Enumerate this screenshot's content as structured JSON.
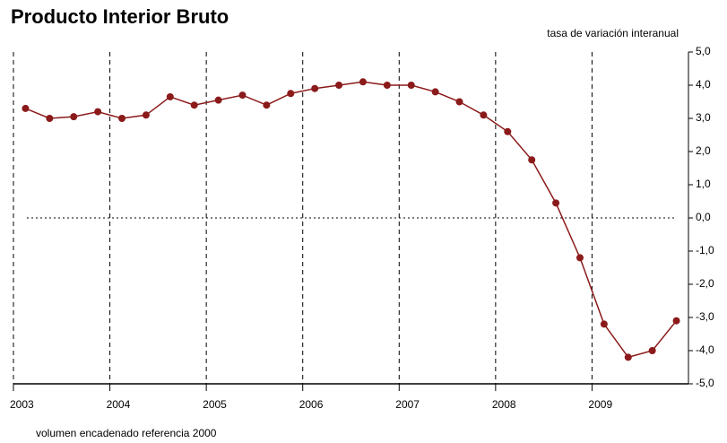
{
  "chart_data": {
    "type": "line",
    "title": "Producto Interior Bruto",
    "subtitle": "tasa de variación interanual",
    "note": "volumen encadenado referencia 2000",
    "x": [
      2003.125,
      2003.375,
      2003.625,
      2003.875,
      2004.125,
      2004.375,
      2004.625,
      2004.875,
      2005.125,
      2005.375,
      2005.625,
      2005.875,
      2006.125,
      2006.375,
      2006.625,
      2006.875,
      2007.125,
      2007.375,
      2007.625,
      2007.875,
      2008.125,
      2008.375,
      2008.625,
      2008.875,
      2009.125,
      2009.375,
      2009.625,
      2009.875
    ],
    "series": [
      {
        "color": "#8b1a1a",
        "values": [
          3.3,
          3.0,
          3.05,
          3.2,
          3.0,
          3.1,
          3.65,
          3.4,
          3.55,
          3.7,
          3.4,
          3.75,
          3.9,
          4.0,
          4.1,
          4.0,
          4.0,
          3.8,
          3.5,
          3.1,
          2.6,
          1.75,
          0.45,
          -1.2,
          -3.2,
          -4.2,
          -4.0,
          -3.1
        ]
      }
    ],
    "xlim": [
      2003,
      2010
    ],
    "xticks": [
      2003,
      2004,
      2005,
      2006,
      2007,
      2008,
      2009
    ],
    "ylim": [
      -5,
      5
    ],
    "yticks": [
      {
        "value": 5,
        "label": "5,0"
      },
      {
        "value": 4,
        "label": "4,0"
      },
      {
        "value": 3,
        "label": "3,0"
      },
      {
        "value": 2,
        "label": "2,0"
      },
      {
        "value": 1,
        "label": "1,0"
      },
      {
        "value": 0,
        "label": "0,0"
      },
      {
        "value": -1,
        "label": "-1,0"
      },
      {
        "value": -2,
        "label": "-2,0"
      },
      {
        "value": -3,
        "label": "-3,0"
      },
      {
        "value": -4,
        "label": "-4,0"
      },
      {
        "value": -5,
        "label": "-5,0"
      }
    ],
    "grid": true
  }
}
